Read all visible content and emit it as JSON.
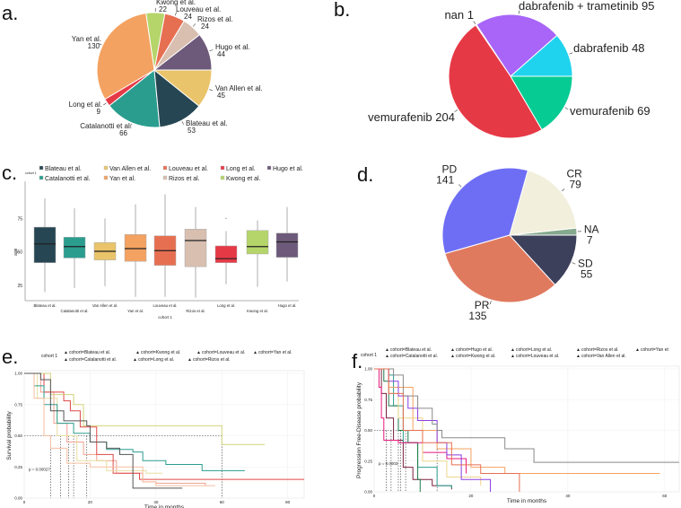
{
  "panel_labels": [
    "a.",
    "b.",
    "c.",
    "d.",
    "e.",
    "f."
  ],
  "chart_data": [
    {
      "type": "pie",
      "panel": "a.",
      "slices": [
        {
          "label": "Hugo et al.",
          "value": 44,
          "color": "#6d597a"
        },
        {
          "label": "Rizos et al.",
          "value": 24,
          "color": "#d8bfb0"
        },
        {
          "label": "Louveau et al.",
          "value": 24,
          "color": "#e76f51"
        },
        {
          "label": "Kwong et al.",
          "value": 22,
          "color": "#b5d56a"
        },
        {
          "label": "Yan et al.",
          "value": 130,
          "color": "#f4a261"
        },
        {
          "label": "Long et al.",
          "value": 9,
          "color": "#e63946"
        },
        {
          "label": "Catalanotti et al.",
          "value": 66,
          "color": "#2a9d8f"
        },
        {
          "label": "Blateau et al.",
          "value": 53,
          "color": "#264653"
        },
        {
          "label": "Van Allen et al.",
          "value": 45,
          "color": "#e9c46a"
        }
      ]
    },
    {
      "type": "pie",
      "panel": "b.",
      "slices": [
        {
          "label": "dabrafenib",
          "value": 48,
          "color": "#1fd3ef"
        },
        {
          "label": "dabrafenib + trametinib",
          "value": 95,
          "color": "#a865f7"
        },
        {
          "label": "nan",
          "value": 1,
          "color": "#eeeeee"
        },
        {
          "label": "vemurafenib",
          "value": 204,
          "color": "#e63946"
        },
        {
          "label": "vemurafenib",
          "value": 69,
          "color": "#06cc94"
        }
      ]
    },
    {
      "type": "box",
      "panel": "c.",
      "xlabel": "cohort 1",
      "ylabel": "age",
      "legend_title": "cohort 1",
      "legend_position": "top",
      "ylim": [
        15,
        96
      ],
      "yticks": [
        25,
        50,
        75
      ],
      "categories": [
        "Blateau et al.",
        "Catalanotti et al.",
        "Van Allen et al.",
        "Yan et al.",
        "Louveau et al.",
        "Rizos et al.",
        "Long et al.",
        "Kwong et al.",
        "Hugo et al."
      ],
      "colors": [
        "#264653",
        "#2a9d8f",
        "#e9c46a",
        "#f4a261",
        "#e76f51",
        "#d8bfb0",
        "#e63946",
        "#b5d56a",
        "#6d597a"
      ],
      "boxes": [
        {
          "min": 20,
          "q1": 42,
          "median": 56,
          "q3": 68.5,
          "max": 90
        },
        {
          "min": 23,
          "q1": 45.5,
          "median": 54,
          "q3": 61,
          "max": 82.5
        },
        {
          "min": 24.5,
          "q1": 44,
          "median": 50.5,
          "q3": 57,
          "max": 75
        },
        {
          "min": 16.5,
          "q1": 43,
          "median": 52.5,
          "q3": 63,
          "max": 85.5
        },
        {
          "min": 16.5,
          "q1": 40,
          "median": 51,
          "q3": 62,
          "max": 93
        },
        {
          "min": 16,
          "q1": 39,
          "median": 58.5,
          "q3": 67,
          "max": 83.5
        },
        {
          "min": 26,
          "q1": 42,
          "median": 45,
          "q3": 54.5,
          "max": 65.5,
          "outliers": [
            75
          ]
        },
        {
          "min": 24,
          "q1": 48.5,
          "median": 54,
          "q3": 66,
          "max": 73.5
        },
        {
          "min": 28,
          "q1": 46,
          "median": 57.5,
          "q3": 64,
          "max": 83.5
        }
      ]
    },
    {
      "type": "pie",
      "panel": "d.",
      "slices": [
        {
          "label": "NA",
          "value": 7,
          "color": "#84a98c"
        },
        {
          "label": "CR",
          "value": 79,
          "color": "#f2efdc"
        },
        {
          "label": "PD",
          "value": 141,
          "color": "#6e6ef5"
        },
        {
          "label": "PR",
          "value": 135,
          "color": "#e07a5f"
        },
        {
          "label": "SD",
          "value": 55,
          "color": "#3d405b"
        }
      ]
    },
    {
      "type": "line",
      "subtype": "kaplan-meier",
      "panel": "e.",
      "xlabel": "Time in months",
      "ylabel": "Survival probability",
      "legend_title": "cohort 1",
      "legend_position": "top",
      "xlim": [
        0,
        85
      ],
      "ylim": [
        0,
        1
      ],
      "xticks": [
        0,
        20,
        40,
        60,
        80
      ],
      "yticks": [
        "0.00",
        "0.25",
        "0.50",
        "0.75",
        "1.00"
      ],
      "grid": true,
      "pvalue": "p = 0.00027",
      "median_times": [
        8,
        11,
        13.5,
        15,
        19,
        60
      ],
      "series": [
        {
          "name": "cohort=Blateau et al.",
          "color": "#f0a090",
          "points": [
            [
              0,
              1
            ],
            [
              5,
              0.85
            ],
            [
              9,
              0.6
            ],
            [
              13,
              0.45
            ],
            [
              18,
              0.35
            ],
            [
              22,
              0.3
            ],
            [
              28,
              0.2
            ],
            [
              36,
              0.13
            ],
            [
              40,
              0.12
            ],
            [
              55,
              0.1
            ]
          ]
        },
        {
          "name": "cohort=Kwong et al.",
          "color": "#e04848",
          "points": [
            [
              0,
              1
            ],
            [
              6,
              0.85
            ],
            [
              12,
              0.78
            ],
            [
              14,
              0.7
            ],
            [
              17,
              0.57
            ],
            [
              22,
              0.35
            ],
            [
              27,
              0.2
            ],
            [
              35,
              0.15
            ],
            [
              85,
              0.15
            ]
          ]
        },
        {
          "name": "cohort=Louveau et al.",
          "color": "#e6dfa0",
          "points": [
            [
              0,
              1
            ],
            [
              4,
              0.8
            ],
            [
              10,
              0.5
            ],
            [
              16,
              0.3
            ],
            [
              25,
              0.22
            ],
            [
              37,
              0.2
            ],
            [
              42,
              0.2
            ]
          ]
        },
        {
          "name": "cohort=Yan et al.",
          "color": "#d2d27a",
          "points": [
            [
              0,
              1
            ],
            [
              8,
              0.83
            ],
            [
              15,
              0.75
            ],
            [
              18,
              0.58
            ],
            [
              60,
              0.58
            ],
            [
              60,
              0.43
            ],
            [
              73,
              0.43
            ]
          ]
        },
        {
          "name": "cohort=Catalanotti et al.",
          "color": "#2a9d8f",
          "points": [
            [
              0,
              1
            ],
            [
              3,
              0.9
            ],
            [
              6,
              0.75
            ],
            [
              10,
              0.6
            ],
            [
              15,
              0.52
            ],
            [
              20,
              0.45
            ],
            [
              25,
              0.39
            ],
            [
              33,
              0.37
            ],
            [
              36,
              0.3
            ],
            [
              43,
              0.27
            ],
            [
              54,
              0.22
            ],
            [
              67,
              0.22
            ]
          ]
        },
        {
          "name": "cohort=Long et al.",
          "color": "#f5bfa0",
          "points": [
            [
              0,
              1
            ],
            [
              3,
              0.8
            ],
            [
              6,
              0.5
            ],
            [
              8,
              0.4
            ],
            [
              13,
              0.28
            ],
            [
              20,
              0.25
            ],
            [
              36,
              0.13
            ],
            [
              40,
              0.1
            ],
            [
              58,
              0.1
            ]
          ]
        },
        {
          "name": "cohort=Rizos et al.",
          "color": "#555555",
          "points": [
            [
              0,
              1
            ],
            [
              5,
              0.95
            ],
            [
              8,
              0.7
            ],
            [
              12,
              0.62
            ],
            [
              19,
              0.58
            ],
            [
              20,
              0.45
            ],
            [
              25,
              0.4
            ],
            [
              29,
              0.35
            ],
            [
              33,
              0.08
            ],
            [
              48,
              0.08
            ]
          ]
        }
      ]
    },
    {
      "type": "line",
      "subtype": "kaplan-meier",
      "panel": "f.",
      "xlabel": "Time in months",
      "ylabel": "Progression Free-Disease probability",
      "legend_title": "cohort 1",
      "legend_position": "top",
      "xlim": [
        0,
        63
      ],
      "ylim": [
        0,
        1
      ],
      "xticks": [
        0,
        20,
        40,
        60
      ],
      "yticks": [
        "0.00",
        "0.25",
        "0.50",
        "0.75",
        "1.00"
      ],
      "grid": true,
      "pvalue": "p = 0.0003",
      "median_times": [
        2.5,
        3.5,
        5,
        5.5,
        6.5,
        13
      ],
      "series": [
        {
          "name": "cohort=Blateau et al.",
          "color": "#7a1f3d",
          "points": [
            [
              0,
              1
            ],
            [
              1.5,
              0.8
            ],
            [
              2.5,
              0.6
            ],
            [
              4,
              0.42
            ],
            [
              6,
              0.2
            ],
            [
              8,
              0.1
            ],
            [
              12,
              0.05
            ],
            [
              16,
              0.02
            ]
          ]
        },
        {
          "name": "cohort=Hugo et al.",
          "color": "#2a9d8f",
          "points": [
            [
              0,
              1
            ],
            [
              3,
              0.95
            ],
            [
              4,
              0.7
            ],
            [
              6,
              0.4
            ],
            [
              9,
              0.2
            ],
            [
              13,
              0.05
            ],
            [
              16,
              0.03
            ]
          ]
        },
        {
          "name": "cohort=Long et al.",
          "color": "#1b7a4a",
          "points": [
            [
              0,
              1
            ],
            [
              2,
              0.9
            ],
            [
              3,
              0.7
            ],
            [
              5,
              0.5
            ],
            [
              7,
              0.4
            ],
            [
              9,
              0.1
            ],
            [
              9.5,
              0
            ]
          ]
        },
        {
          "name": "cohort=Rizos et al.",
          "color": "#f4a261",
          "points": [
            [
              0,
              1
            ],
            [
              3,
              0.85
            ],
            [
              8,
              0.5
            ],
            [
              13,
              0.35
            ],
            [
              20,
              0.2
            ],
            [
              27,
              0.15
            ],
            [
              59,
              0.15
            ]
          ]
        },
        {
          "name": "cohort=Yan et",
          "color": "#e8197d",
          "points": [
            [
              0,
              1
            ],
            [
              1,
              0.85
            ],
            [
              1.5,
              0.6
            ],
            [
              2,
              0.42
            ],
            [
              5,
              0.4
            ],
            [
              10,
              0.32
            ],
            [
              15,
              0.27
            ],
            [
              19,
              0.27
            ],
            [
              19,
              0.15
            ]
          ]
        },
        {
          "name": "cohort=Catalanotti et al.",
          "color": "#eed58a",
          "points": [
            [
              0,
              1
            ],
            [
              3,
              0.8
            ],
            [
              5,
              0.6
            ],
            [
              10,
              0.25
            ],
            [
              15,
              0.12
            ],
            [
              22,
              0.05
            ]
          ]
        },
        {
          "name": "cohort=Kwong et al.",
          "color": "#8a3ee0",
          "points": [
            [
              0,
              1
            ],
            [
              3,
              0.9
            ],
            [
              5,
              0.78
            ],
            [
              7,
              0.68
            ],
            [
              9,
              0.58
            ],
            [
              13,
              0.4
            ],
            [
              15,
              0.3
            ],
            [
              18,
              0.1
            ],
            [
              20,
              0.1
            ],
            [
              24,
              0
            ]
          ]
        },
        {
          "name": "cohort=Louveau et al.",
          "color": "#8a8a8a",
          "points": [
            [
              0,
              1
            ],
            [
              4,
              0.95
            ],
            [
              6,
              0.78
            ],
            [
              9,
              0.68
            ],
            [
              12,
              0.55
            ],
            [
              13,
              0.5
            ],
            [
              14,
              0.44
            ],
            [
              26,
              0.44
            ],
            [
              27,
              0.35
            ],
            [
              33,
              0.24
            ],
            [
              63,
              0.24
            ]
          ]
        },
        {
          "name": "cohort=Van Allen et al.",
          "color": "#e76f51",
          "points": [
            [
              0,
              1
            ],
            [
              3,
              0.8
            ],
            [
              6,
              0.5
            ],
            [
              10,
              0.4
            ],
            [
              16,
              0.22
            ],
            [
              22,
              0.15
            ],
            [
              30,
              0.15
            ],
            [
              30,
              0
            ]
          ]
        }
      ]
    }
  ]
}
